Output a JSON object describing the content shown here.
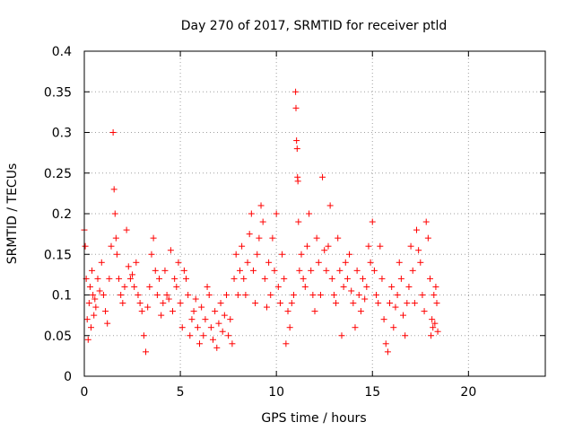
{
  "chart_data": {
    "type": "scatter",
    "title": "Day 270 of 2017, SRMTID for receiver ptld",
    "xlabel": "GPS time / hours",
    "ylabel": "SRMTID / TECUs",
    "xlim": [
      0,
      24
    ],
    "ylim": [
      0,
      0.4
    ],
    "xticks": [
      0,
      5,
      10,
      15,
      20
    ],
    "xtick_labels": [
      "0",
      "5",
      "10",
      "15",
      "20"
    ],
    "yticks": [
      0,
      0.05,
      0.1,
      0.15,
      0.2,
      0.25,
      0.3,
      0.35,
      0.4
    ],
    "ytick_labels": [
      "0",
      "0.05",
      "0.1",
      "0.15",
      "0.2",
      "0.25",
      "0.3",
      "0.35",
      "0.4"
    ],
    "grid": true,
    "marker": "+",
    "series": [
      {
        "color": "#ff0000",
        "points": [
          [
            0.0,
            0.18
          ],
          [
            0.05,
            0.16
          ],
          [
            0.1,
            0.12
          ],
          [
            0.15,
            0.07
          ],
          [
            0.2,
            0.045
          ],
          [
            0.25,
            0.09
          ],
          [
            0.3,
            0.11
          ],
          [
            0.35,
            0.06
          ],
          [
            0.4,
            0.13
          ],
          [
            0.45,
            0.1
          ],
          [
            0.5,
            0.075
          ],
          [
            0.55,
            0.095
          ],
          [
            0.6,
            0.085
          ],
          [
            0.7,
            0.12
          ],
          [
            0.8,
            0.105
          ],
          [
            0.9,
            0.14
          ],
          [
            1.0,
            0.1
          ],
          [
            1.1,
            0.08
          ],
          [
            1.2,
            0.065
          ],
          [
            1.3,
            0.12
          ],
          [
            1.4,
            0.16
          ],
          [
            1.5,
            0.3
          ],
          [
            1.55,
            0.23
          ],
          [
            1.6,
            0.2
          ],
          [
            1.65,
            0.17
          ],
          [
            1.7,
            0.15
          ],
          [
            1.8,
            0.12
          ],
          [
            1.9,
            0.1
          ],
          [
            2.0,
            0.09
          ],
          [
            2.1,
            0.11
          ],
          [
            2.2,
            0.18
          ],
          [
            2.3,
            0.135
          ],
          [
            2.4,
            0.12
          ],
          [
            2.5,
            0.125
          ],
          [
            2.6,
            0.11
          ],
          [
            2.7,
            0.14
          ],
          [
            2.8,
            0.1
          ],
          [
            2.9,
            0.09
          ],
          [
            3.0,
            0.08
          ],
          [
            3.1,
            0.05
          ],
          [
            3.2,
            0.03
          ],
          [
            3.3,
            0.085
          ],
          [
            3.4,
            0.11
          ],
          [
            3.5,
            0.15
          ],
          [
            3.6,
            0.17
          ],
          [
            3.7,
            0.13
          ],
          [
            3.8,
            0.1
          ],
          [
            3.9,
            0.12
          ],
          [
            4.0,
            0.075
          ],
          [
            4.1,
            0.09
          ],
          [
            4.2,
            0.13
          ],
          [
            4.3,
            0.1
          ],
          [
            4.4,
            0.095
          ],
          [
            4.5,
            0.155
          ],
          [
            4.6,
            0.08
          ],
          [
            4.7,
            0.12
          ],
          [
            4.8,
            0.11
          ],
          [
            4.9,
            0.14
          ],
          [
            5.0,
            0.09
          ],
          [
            5.1,
            0.06
          ],
          [
            5.2,
            0.13
          ],
          [
            5.3,
            0.12
          ],
          [
            5.4,
            0.1
          ],
          [
            5.5,
            0.05
          ],
          [
            5.6,
            0.07
          ],
          [
            5.7,
            0.08
          ],
          [
            5.8,
            0.095
          ],
          [
            5.9,
            0.06
          ],
          [
            6.0,
            0.04
          ],
          [
            6.1,
            0.085
          ],
          [
            6.2,
            0.05
          ],
          [
            6.3,
            0.07
          ],
          [
            6.4,
            0.11
          ],
          [
            6.5,
            0.1
          ],
          [
            6.6,
            0.06
          ],
          [
            6.7,
            0.045
          ],
          [
            6.8,
            0.08
          ],
          [
            6.9,
            0.035
          ],
          [
            7.0,
            0.065
          ],
          [
            7.1,
            0.09
          ],
          [
            7.2,
            0.055
          ],
          [
            7.3,
            0.075
          ],
          [
            7.4,
            0.1
          ],
          [
            7.5,
            0.05
          ],
          [
            7.6,
            0.07
          ],
          [
            7.7,
            0.04
          ],
          [
            7.8,
            0.12
          ],
          [
            7.9,
            0.15
          ],
          [
            8.0,
            0.1
          ],
          [
            8.1,
            0.13
          ],
          [
            8.2,
            0.16
          ],
          [
            8.3,
            0.12
          ],
          [
            8.4,
            0.1
          ],
          [
            8.5,
            0.14
          ],
          [
            8.6,
            0.175
          ],
          [
            8.7,
            0.2
          ],
          [
            8.8,
            0.13
          ],
          [
            8.9,
            0.09
          ],
          [
            9.0,
            0.15
          ],
          [
            9.1,
            0.17
          ],
          [
            9.2,
            0.21
          ],
          [
            9.3,
            0.19
          ],
          [
            9.4,
            0.12
          ],
          [
            9.5,
            0.085
          ],
          [
            9.6,
            0.14
          ],
          [
            9.7,
            0.1
          ],
          [
            9.8,
            0.17
          ],
          [
            9.9,
            0.13
          ],
          [
            10.0,
            0.2
          ],
          [
            10.1,
            0.11
          ],
          [
            10.2,
            0.09
          ],
          [
            10.3,
            0.15
          ],
          [
            10.4,
            0.12
          ],
          [
            10.5,
            0.04
          ],
          [
            10.6,
            0.08
          ],
          [
            10.7,
            0.06
          ],
          [
            10.8,
            0.09
          ],
          [
            10.9,
            0.1
          ],
          [
            11.0,
            0.35
          ],
          [
            11.02,
            0.33
          ],
          [
            11.05,
            0.29
          ],
          [
            11.08,
            0.28
          ],
          [
            11.1,
            0.245
          ],
          [
            11.12,
            0.24
          ],
          [
            11.15,
            0.19
          ],
          [
            11.2,
            0.13
          ],
          [
            11.3,
            0.15
          ],
          [
            11.4,
            0.12
          ],
          [
            11.5,
            0.11
          ],
          [
            11.6,
            0.16
          ],
          [
            11.7,
            0.2
          ],
          [
            11.8,
            0.13
          ],
          [
            11.9,
            0.1
          ],
          [
            12.0,
            0.08
          ],
          [
            12.1,
            0.17
          ],
          [
            12.2,
            0.14
          ],
          [
            12.3,
            0.1
          ],
          [
            12.4,
            0.245
          ],
          [
            12.5,
            0.155
          ],
          [
            12.6,
            0.13
          ],
          [
            12.7,
            0.16
          ],
          [
            12.8,
            0.21
          ],
          [
            12.9,
            0.12
          ],
          [
            13.0,
            0.1
          ],
          [
            13.1,
            0.09
          ],
          [
            13.2,
            0.17
          ],
          [
            13.3,
            0.13
          ],
          [
            13.4,
            0.05
          ],
          [
            13.5,
            0.11
          ],
          [
            13.6,
            0.14
          ],
          [
            13.7,
            0.12
          ],
          [
            13.8,
            0.15
          ],
          [
            13.9,
            0.105
          ],
          [
            14.0,
            0.09
          ],
          [
            14.1,
            0.06
          ],
          [
            14.2,
            0.13
          ],
          [
            14.3,
            0.1
          ],
          [
            14.4,
            0.08
          ],
          [
            14.5,
            0.12
          ],
          [
            14.6,
            0.095
          ],
          [
            14.7,
            0.11
          ],
          [
            14.8,
            0.16
          ],
          [
            14.9,
            0.14
          ],
          [
            15.0,
            0.19
          ],
          [
            15.1,
            0.13
          ],
          [
            15.2,
            0.1
          ],
          [
            15.3,
            0.09
          ],
          [
            15.4,
            0.16
          ],
          [
            15.5,
            0.12
          ],
          [
            15.6,
            0.07
          ],
          [
            15.7,
            0.04
          ],
          [
            15.8,
            0.03
          ],
          [
            15.9,
            0.09
          ],
          [
            16.0,
            0.11
          ],
          [
            16.1,
            0.06
          ],
          [
            16.2,
            0.085
          ],
          [
            16.3,
            0.1
          ],
          [
            16.4,
            0.14
          ],
          [
            16.5,
            0.12
          ],
          [
            16.6,
            0.075
          ],
          [
            16.7,
            0.05
          ],
          [
            16.8,
            0.09
          ],
          [
            16.9,
            0.11
          ],
          [
            17.0,
            0.16
          ],
          [
            17.1,
            0.13
          ],
          [
            17.2,
            0.09
          ],
          [
            17.3,
            0.18
          ],
          [
            17.4,
            0.155
          ],
          [
            17.5,
            0.14
          ],
          [
            17.6,
            0.1
          ],
          [
            17.7,
            0.08
          ],
          [
            17.8,
            0.19
          ],
          [
            17.9,
            0.17
          ],
          [
            18.0,
            0.12
          ],
          [
            18.05,
            0.05
          ],
          [
            18.1,
            0.07
          ],
          [
            18.15,
            0.06
          ],
          [
            18.2,
            0.1
          ],
          [
            18.25,
            0.065
          ],
          [
            18.3,
            0.11
          ],
          [
            18.35,
            0.09
          ],
          [
            18.4,
            0.055
          ]
        ]
      }
    ]
  }
}
